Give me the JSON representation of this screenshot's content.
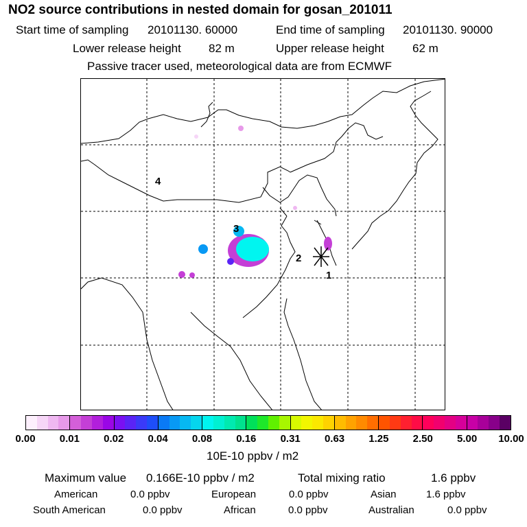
{
  "header": {
    "title": "NO2 source contributions in nested domain for gosan_201011",
    "start_label": "Start time of sampling",
    "start_value": "20101130. 60000",
    "end_label": "End time of sampling",
    "end_value": "20101130. 90000",
    "lower_label": "Lower release height",
    "lower_value": "82 m",
    "upper_label": "Upper release height",
    "upper_value": "62 m",
    "note": "Passive tracer used, meteorological data are from ECMWF"
  },
  "map": {
    "region_labels": [
      "1",
      "2",
      "3",
      "4"
    ],
    "receptor_marker": "asterisk-receptor"
  },
  "colorbar": {
    "ticks": [
      "0.00",
      "0.01",
      "0.02",
      "0.04",
      "0.08",
      "0.16",
      "0.31",
      "0.63",
      "1.25",
      "2.50",
      "5.00",
      "10.00"
    ],
    "unit": "10E-10 ppbv / m2",
    "colors": [
      [
        "#fdf0fd",
        "#f6d6f7",
        "#efb8f1",
        "#e79ae9"
      ],
      [
        "#d45fd9",
        "#c43fd6",
        "#b21fdc",
        "#9a06e6"
      ],
      [
        "#7a10f2",
        "#5a24f6",
        "#3a3af8",
        "#1e4ef9"
      ],
      [
        "#0a7af5",
        "#0899f4",
        "#06b8f2",
        "#05d6ee"
      ],
      [
        "#00f5f0",
        "#00f0d2",
        "#00eab0",
        "#00e28e"
      ],
      [
        "#00e05a",
        "#1ee82a",
        "#60f000",
        "#a8f600"
      ],
      [
        "#d8fa00",
        "#f2f600",
        "#fbe800",
        "#ffd200"
      ],
      [
        "#ffbc00",
        "#ffa200",
        "#ff8a00",
        "#ff6e00"
      ],
      [
        "#ff5400",
        "#ff3a14",
        "#ff2030",
        "#ff0c46"
      ],
      [
        "#ff005a",
        "#f2006e",
        "#e40084",
        "#d6009a"
      ],
      [
        "#c800a6",
        "#a8009a",
        "#88008a",
        "#5a0064"
      ]
    ]
  },
  "summary": {
    "max_label": "Maximum value",
    "max_value": "0.166E-10 ppbv / m2",
    "total_label": "Total mixing ratio",
    "total_value": "1.6 ppbv",
    "regions": [
      {
        "name": "American",
        "value": "0.0 ppbv"
      },
      {
        "name": "European",
        "value": "0.0 ppbv"
      },
      {
        "name": "Asian",
        "value": "1.6 ppbv"
      },
      {
        "name": "South American",
        "value": "0.0 ppbv"
      },
      {
        "name": "African",
        "value": "0.0 ppbv"
      },
      {
        "name": "Australian",
        "value": "0.0 ppbv"
      }
    ]
  }
}
